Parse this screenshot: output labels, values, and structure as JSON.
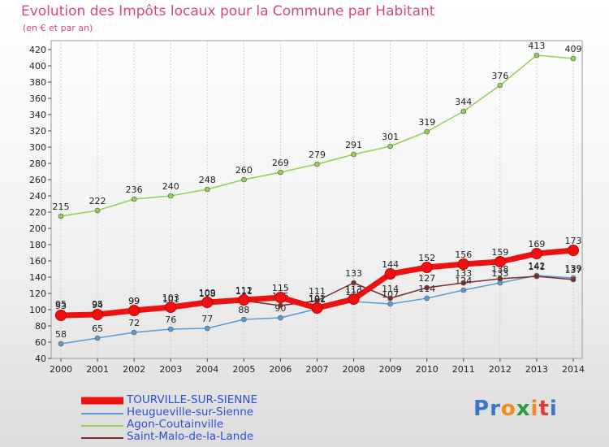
{
  "page": {
    "title": "Evolution des Impôts locaux pour la Commune par Habitant",
    "subtitle": "(en € et par an)"
  },
  "logo": {
    "letters": [
      "P",
      "r",
      "o",
      "x",
      "i",
      "t",
      "i"
    ],
    "colors": [
      "#3a78c2",
      "#3a78c2",
      "#f08a1c",
      "#2f9a3c",
      "#f08a1c",
      "#e03c3c",
      "#3a78c2"
    ]
  },
  "chart_data": {
    "type": "line",
    "title": "Evolution des Impôts locaux pour la Commune par Habitant",
    "subtitle": "(en € et par an)",
    "xlabel": "",
    "ylabel": "",
    "x": [
      2000,
      2001,
      2002,
      2003,
      2004,
      2005,
      2006,
      2007,
      2008,
      2009,
      2010,
      2011,
      2012,
      2013,
      2014
    ],
    "ylim": [
      40,
      420
    ],
    "ytick_step": 20,
    "grid": "vertical",
    "legend_position": "bottom-left",
    "series": [
      {
        "name": "Heugueville-sur-Sienne",
        "color": "#5b9bd5",
        "values": [
          58,
          65,
          72,
          76,
          77,
          88,
          90,
          101,
          110,
          107,
          114,
          124,
          133,
          142,
          139
        ]
      },
      {
        "name": "Agon-Coutainville",
        "color": "#92d050",
        "values": [
          215,
          222,
          236,
          240,
          248,
          260,
          269,
          279,
          291,
          301,
          319,
          344,
          376,
          413,
          409
        ]
      },
      {
        "name": "Saint-Malo-de-la-Lande",
        "color": "#7b2c2c",
        "values": [
          95,
          95,
          99,
          101,
          108,
          111,
          105,
          111,
          133,
          114,
          127,
          133,
          138,
          141,
          137
        ]
      },
      {
        "name": "TOURVILLE-SUR-SIENNE",
        "color": "#ee1111",
        "values": [
          93,
          94,
          99,
          103,
          109,
          112,
          115,
          102,
          113,
          144,
          152,
          156,
          159,
          169,
          173
        ]
      }
    ]
  }
}
